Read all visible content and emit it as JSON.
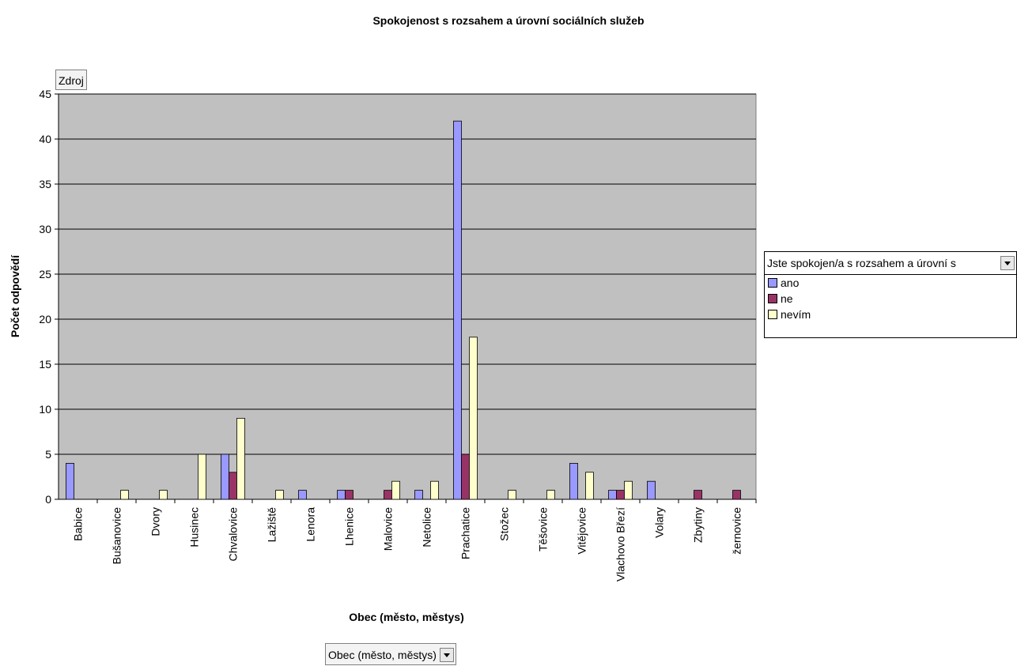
{
  "chart_data": {
    "type": "bar",
    "title": "Spokojenost s rozsahem a úrovní sociálních služeb",
    "xlabel": "Obec (město, městys)",
    "ylabel": "Počet odpovědí",
    "ylim": [
      0,
      45
    ],
    "yticks": [
      0,
      5,
      10,
      15,
      20,
      25,
      30,
      35,
      40,
      45
    ],
    "grid": true,
    "legend_position": "right",
    "categories": [
      "Babice",
      "Bušanovice",
      "Dvory",
      "Husinec",
      "Chvalovice",
      "Lažiště",
      "Lenora",
      "Lhenice",
      "Malovice",
      "Netolice",
      "Prachatice",
      "Stožec",
      "Těšovice",
      "Vitějovice",
      "Vlachovo Březí",
      "Volary",
      "Zbytiny",
      "žernovice"
    ],
    "series": [
      {
        "name": "ano",
        "color": "#9999ff",
        "values": [
          4,
          0,
          0,
          0,
          5,
          0,
          1,
          1,
          0,
          1,
          42,
          0,
          0,
          4,
          1,
          2,
          0,
          0
        ]
      },
      {
        "name": "ne",
        "color": "#993366",
        "values": [
          0,
          0,
          0,
          0,
          3,
          0,
          0,
          1,
          1,
          0,
          5,
          0,
          0,
          0,
          1,
          0,
          1,
          1
        ]
      },
      {
        "name": "nevím",
        "color": "#ffffcc",
        "values": [
          0,
          1,
          1,
          5,
          9,
          1,
          0,
          0,
          2,
          2,
          18,
          1,
          1,
          3,
          2,
          0,
          0,
          0
        ]
      }
    ],
    "plot_background": "#c0c0c0"
  },
  "legend": {
    "header": "Jste spokojen/a s rozsahem a úrovní s"
  },
  "source_button": "Zdroj",
  "field_button": "Obec (město, městys)"
}
